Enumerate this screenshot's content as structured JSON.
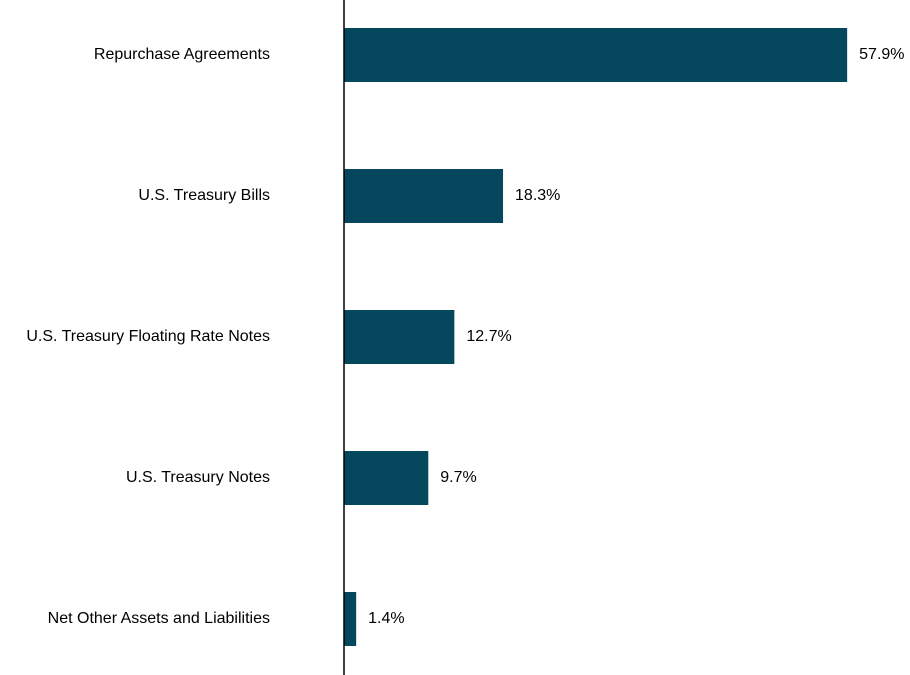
{
  "chart_data": {
    "type": "bar",
    "orientation": "horizontal",
    "categories": [
      "Repurchase Agreements",
      "U.S. Treasury Bills",
      "U.S. Treasury Floating Rate Notes",
      "U.S. Treasury Notes",
      "Net Other Assets and Liabilities"
    ],
    "values": [
      57.9,
      18.3,
      12.7,
      9.7,
      1.4
    ],
    "value_labels": [
      "57.9%",
      "18.3%",
      "12.7%",
      "9.7%",
      "1.4%"
    ],
    "unit": "%",
    "xlim": [
      0,
      60
    ],
    "grid": false,
    "legend": "none",
    "bar_color": "#05475C",
    "axis_color": "#000000"
  }
}
